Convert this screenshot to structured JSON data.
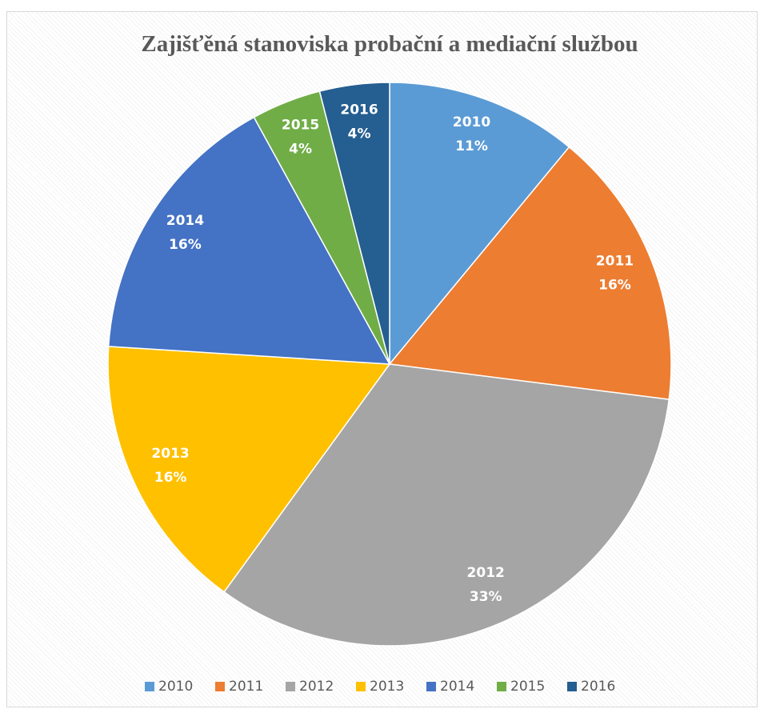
{
  "chart_data": {
    "type": "pie",
    "title": "Zajišťěná stanoviska probační a mediační službou",
    "categories": [
      "2010",
      "2011",
      "2012",
      "2013",
      "2014",
      "2015",
      "2016"
    ],
    "values": [
      11,
      16,
      33,
      16,
      16,
      4,
      4
    ],
    "value_labels": [
      "11%",
      "16%",
      "33%",
      "16%",
      "16%",
      "4%",
      "4%"
    ],
    "colors": [
      "#5b9bd5",
      "#ed7d31",
      "#a5a5a5",
      "#ffc000",
      "#4472c4",
      "#70ad47",
      "#255e91"
    ],
    "legend": "bottom"
  }
}
